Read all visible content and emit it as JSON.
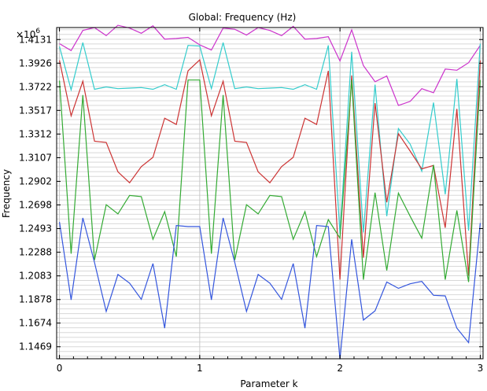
{
  "chart_data": {
    "type": "line",
    "title": "Global: Frequency (Hz)",
    "xlabel": "Parameter k",
    "ylabel": "Frequency",
    "y_multiplier": "×10",
    "y_multiplier_exp": "6",
    "xlim": [
      -0.02,
      3.02
    ],
    "ylim": [
      1.1365,
      1.4235
    ],
    "grid": true,
    "x_ticks": [
      0,
      1,
      2,
      3
    ],
    "y_ticks": [
      1.1469,
      1.1674,
      1.1878,
      1.2083,
      1.2288,
      1.2493,
      1.2698,
      1.2902,
      1.3107,
      1.3312,
      1.3517,
      1.3722,
      1.3926,
      1.4131
    ],
    "x": [
      0,
      0.0833,
      0.1667,
      0.25,
      0.3333,
      0.4167,
      0.5,
      0.5833,
      0.6667,
      0.75,
      0.8333,
      0.9167,
      1,
      1.0833,
      1.1667,
      1.25,
      1.3333,
      1.4167,
      1.5,
      1.5833,
      1.6667,
      1.75,
      1.8333,
      1.9167,
      2,
      2.0833,
      2.1667,
      2.25,
      2.3333,
      2.4167,
      2.5,
      2.5833,
      2.6667,
      2.75,
      2.8333,
      2.9167,
      3
    ],
    "series": [
      {
        "color": "#cc33cc",
        "values": [
          1.4095,
          1.4035,
          1.421,
          1.4235,
          1.4165,
          1.4255,
          1.423,
          1.4185,
          1.425,
          1.4135,
          1.414,
          1.415,
          1.4085,
          1.404,
          1.423,
          1.422,
          1.417,
          1.4235,
          1.421,
          1.4165,
          1.4245,
          1.4135,
          1.414,
          1.4155,
          1.3945,
          1.4215,
          1.3905,
          1.3765,
          1.3815,
          1.356,
          1.3595,
          1.3705,
          1.367,
          1.3875,
          1.3865,
          1.393,
          1.408
        ]
      },
      {
        "color": "#33cccc",
        "values": [
          1.407,
          1.3695,
          1.4105,
          1.37,
          1.372,
          1.3705,
          1.371,
          1.3715,
          1.37,
          1.374,
          1.37,
          1.408,
          1.4075,
          1.3705,
          1.4105,
          1.3705,
          1.372,
          1.3705,
          1.371,
          1.3715,
          1.37,
          1.374,
          1.37,
          1.408,
          1.245,
          1.4025,
          1.246,
          1.374,
          1.26,
          1.336,
          1.3225,
          1.299,
          1.3585,
          1.279,
          1.379,
          1.2475,
          1.4095
        ]
      },
      {
        "color": "#cc3333",
        "values": [
          1.395,
          1.347,
          1.377,
          1.325,
          1.324,
          1.2985,
          1.289,
          1.303,
          1.311,
          1.345,
          1.3395,
          1.386,
          1.3955,
          1.347,
          1.377,
          1.325,
          1.324,
          1.2985,
          1.289,
          1.303,
          1.311,
          1.345,
          1.3395,
          1.386,
          1.205,
          1.382,
          1.224,
          1.358,
          1.272,
          1.3315,
          1.3165,
          1.301,
          1.304,
          1.25,
          1.353,
          1.2085,
          1.395
        ]
      },
      {
        "color": "#33aa33",
        "values": [
          1.3775,
          1.2275,
          1.365,
          1.222,
          1.27,
          1.262,
          1.278,
          1.277,
          1.24,
          1.264,
          1.225,
          1.378,
          1.378,
          1.2275,
          1.365,
          1.222,
          1.27,
          1.262,
          1.278,
          1.277,
          1.24,
          1.264,
          1.225,
          1.257,
          1.241,
          1.378,
          1.205,
          1.2805,
          1.213,
          1.28,
          1.26,
          1.241,
          1.3045,
          1.205,
          1.265,
          1.203,
          1.378
        ]
      },
      {
        "color": "#3355dd",
        "values": [
          1.255,
          1.1875,
          1.2585,
          1.22,
          1.1775,
          1.2095,
          1.202,
          1.188,
          1.219,
          1.163,
          1.252,
          1.251,
          1.251,
          1.1875,
          1.2585,
          1.22,
          1.1775,
          1.2095,
          1.202,
          1.188,
          1.219,
          1.163,
          1.252,
          1.251,
          1.136,
          1.24,
          1.17,
          1.178,
          1.203,
          1.1975,
          1.2015,
          1.2035,
          1.1915,
          1.191,
          1.163,
          1.1505,
          1.254
        ]
      }
    ]
  }
}
